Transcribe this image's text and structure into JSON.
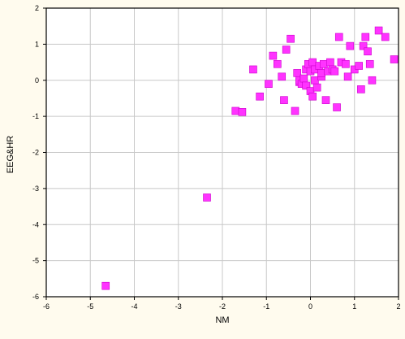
{
  "chart_data": {
    "type": "scatter",
    "xlabel": "NM",
    "ylabel": "EEG&HR",
    "xlim": [
      -6,
      2
    ],
    "ylim": [
      -6,
      2
    ],
    "xticks": [
      "-6",
      "-5",
      "-4",
      "-3",
      "-2",
      "-1",
      "0",
      "1",
      "2"
    ],
    "yticks": [
      "2",
      "1",
      "0",
      "-1",
      "-2",
      "-3",
      "-4",
      "-5",
      "-6"
    ],
    "grid": true,
    "legend": "none",
    "colors": {
      "marker": "#ff33ff",
      "marker_edge": "#cc00cc",
      "background": "#fffbee",
      "plot_area": "#ffffff",
      "grid": "#c8c8c8"
    },
    "series": [
      {
        "points": [
          [
            -4.65,
            -5.7
          ],
          [
            -2.35,
            -3.25
          ],
          [
            -1.7,
            -0.85
          ],
          [
            -1.55,
            -0.88
          ],
          [
            -1.3,
            0.3
          ],
          [
            -1.15,
            -0.45
          ],
          [
            -0.95,
            -0.1
          ],
          [
            -0.85,
            0.68
          ],
          [
            -0.75,
            0.45
          ],
          [
            -0.65,
            0.1
          ],
          [
            -0.6,
            -0.55
          ],
          [
            -0.55,
            0.85
          ],
          [
            -0.45,
            1.15
          ],
          [
            -0.35,
            -0.85
          ],
          [
            -0.3,
            0.2
          ],
          [
            -0.25,
            -0.05
          ],
          [
            -0.25,
            0.0
          ],
          [
            -0.2,
            -0.1
          ],
          [
            -0.15,
            0.05
          ],
          [
            -0.1,
            0.3
          ],
          [
            -0.1,
            -0.15
          ],
          [
            -0.05,
            0.45
          ],
          [
            0.0,
            0.25
          ],
          [
            0.0,
            -0.3
          ],
          [
            0.05,
            0.5
          ],
          [
            0.05,
            -0.45
          ],
          [
            0.1,
            0.0
          ],
          [
            0.1,
            0.3
          ],
          [
            0.15,
            -0.2
          ],
          [
            0.2,
            0.4
          ],
          [
            0.25,
            0.1
          ],
          [
            0.25,
            0.2
          ],
          [
            0.3,
            0.45
          ],
          [
            0.35,
            -0.55
          ],
          [
            0.4,
            0.25
          ],
          [
            0.45,
            0.5
          ],
          [
            0.5,
            0.3
          ],
          [
            0.55,
            0.25
          ],
          [
            0.6,
            -0.75
          ],
          [
            0.65,
            1.2
          ],
          [
            0.7,
            0.5
          ],
          [
            0.8,
            0.45
          ],
          [
            0.85,
            0.1
          ],
          [
            0.9,
            0.95
          ],
          [
            1.0,
            0.3
          ],
          [
            1.1,
            0.4
          ],
          [
            1.15,
            -0.25
          ],
          [
            1.2,
            0.95
          ],
          [
            1.25,
            1.2
          ],
          [
            1.3,
            0.8
          ],
          [
            1.35,
            0.45
          ],
          [
            1.4,
            0.0
          ],
          [
            1.55,
            1.38
          ],
          [
            1.7,
            1.2
          ],
          [
            1.9,
            0.58
          ]
        ]
      }
    ]
  }
}
